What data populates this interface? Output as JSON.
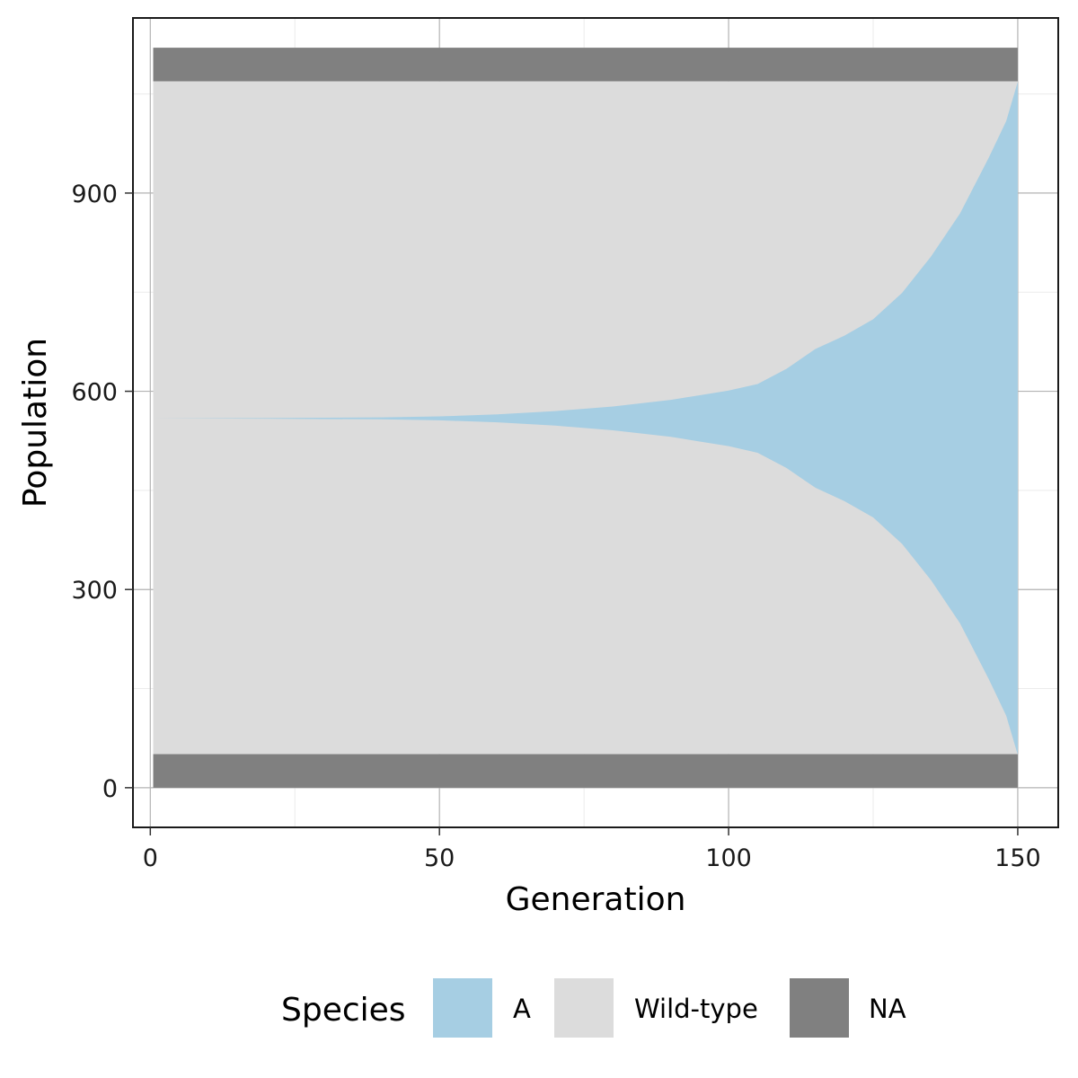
{
  "chart_data": {
    "type": "area",
    "subtype": "stacked-area-centered",
    "xlabel": "Generation",
    "ylabel": "Population",
    "xlim": [
      -3,
      157
    ],
    "ylim": [
      -60,
      1165
    ],
    "x_ticks": [
      0,
      50,
      100,
      150
    ],
    "x_tick_labels": [
      "0",
      "50",
      "100",
      "150"
    ],
    "y_ticks": [
      0,
      300,
      600,
      900
    ],
    "y_tick_labels": [
      "0",
      "300",
      "600",
      "900"
    ],
    "x_minor_gridlines": [
      25,
      75,
      125
    ],
    "y_minor_gridlines": [
      150,
      450,
      750,
      1050
    ],
    "grid": true,
    "legend": {
      "title": "Species",
      "position": "bottom",
      "entries": [
        {
          "key": "A",
          "label": "A",
          "color": "#a6cee3"
        },
        {
          "key": "Wild-type",
          "label": "Wild-type",
          "color": "#dcdcdc"
        },
        {
          "key": "NA",
          "label": "NA",
          "color": "#808080"
        }
      ]
    },
    "center_line": 559,
    "total_stack": 1120,
    "na_bands": {
      "bottom": [
        0,
        51
      ],
      "top": [
        1069,
        1120
      ]
    },
    "x_range": [
      0.5,
      150
    ],
    "series_A": {
      "name": "A",
      "description": "population of species A at each generation (band centered at center_line)",
      "x": [
        0.5,
        20,
        40,
        50,
        60,
        70,
        80,
        90,
        95,
        100,
        105,
        110,
        115,
        120,
        125,
        130,
        135,
        140,
        145,
        148,
        150
      ],
      "values": [
        0,
        1,
        3,
        6,
        12,
        22,
        36,
        56,
        70,
        84,
        104,
        150,
        210,
        250,
        300,
        380,
        490,
        620,
        790,
        900,
        1018
      ]
    },
    "series_wildtype": {
      "name": "Wild-type",
      "description": "remaining population fills the band between the NA strips"
    }
  }
}
